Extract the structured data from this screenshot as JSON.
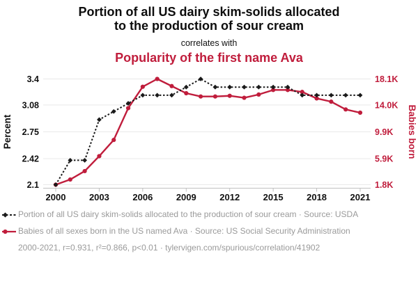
{
  "header": {
    "title_lines": [
      "Portion of all US dairy skim-solids allocated",
      "to the production of sour cream"
    ],
    "subtitle": "correlates with",
    "secondary_title": "Popularity of the first name Ava"
  },
  "colors": {
    "accent_red": "#c01d3c",
    "series_black": "#1a1a1a",
    "grid": "#e9e9e9",
    "axis": "#c0c0c0",
    "legend_text": "#9a9a9a",
    "background": "#ffffff"
  },
  "chart_data": {
    "type": "line",
    "x": [
      2000,
      2001,
      2002,
      2003,
      2004,
      2005,
      2006,
      2007,
      2008,
      2009,
      2010,
      2011,
      2012,
      2013,
      2014,
      2015,
      2016,
      2017,
      2018,
      2019,
      2020,
      2021
    ],
    "series": [
      {
        "name": "Portion of all US dairy skim-solids allocated to the production of sour cream",
        "axis": "left",
        "unit": "percent",
        "style": "dashed",
        "marker": "diamond",
        "values": [
          2.1,
          2.4,
          2.4,
          2.9,
          3.0,
          3.1,
          3.2,
          3.2,
          3.2,
          3.3,
          3.4,
          3.3,
          3.3,
          3.3,
          3.3,
          3.3,
          3.3,
          3.2,
          3.2,
          3.2,
          3.2,
          3.2
        ]
      },
      {
        "name": "Babies of all sexes born in the US named Ava",
        "axis": "right",
        "unit": "thousands of babies",
        "style": "solid",
        "marker": "circle",
        "values": [
          1.8,
          2.6,
          3.9,
          6.2,
          8.7,
          13.6,
          16.9,
          18.1,
          17.0,
          15.9,
          15.4,
          15.4,
          15.5,
          15.2,
          15.7,
          16.4,
          16.4,
          16.1,
          15.1,
          14.6,
          13.4,
          12.9
        ]
      }
    ],
    "ylabel_left": "Percent",
    "ylabel_right": "Babies born",
    "x_ticks": [
      2000,
      2003,
      2006,
      2009,
      2012,
      2015,
      2018,
      2021
    ],
    "y_left_ticks": {
      "labels": [
        "3.4",
        "3.08",
        "2.75",
        "2.42",
        "2.1"
      ],
      "values": [
        3.4,
        3.08,
        2.75,
        2.42,
        2.1
      ]
    },
    "y_right_ticks": {
      "labels": [
        "18.1K",
        "14.0K",
        "9.9K",
        "5.9K",
        "1.8K"
      ],
      "values": [
        18.1,
        14.0,
        9.9,
        5.9,
        1.8
      ]
    },
    "ylim_left": [
      2.1,
      3.4
    ],
    "ylim_right": [
      1.8,
      18.1
    ],
    "xlim": [
      2000,
      2021
    ],
    "grid": "horizontal"
  },
  "legend": {
    "items": [
      {
        "marker": "black-diamond-dashed-line",
        "label": "Portion of all US dairy skim-solids allocated to the production of sour cream · Source: USDA"
      },
      {
        "marker": "red-circle-solid-line",
        "label": "Babies of all sexes born in the US named Ava · Source: US Social Security Administration"
      }
    ]
  },
  "footer": {
    "text": "2000-2021, r=0.931, r²=0.866, p<0.01 · tylervigen.com/spurious/correlation/41902"
  }
}
